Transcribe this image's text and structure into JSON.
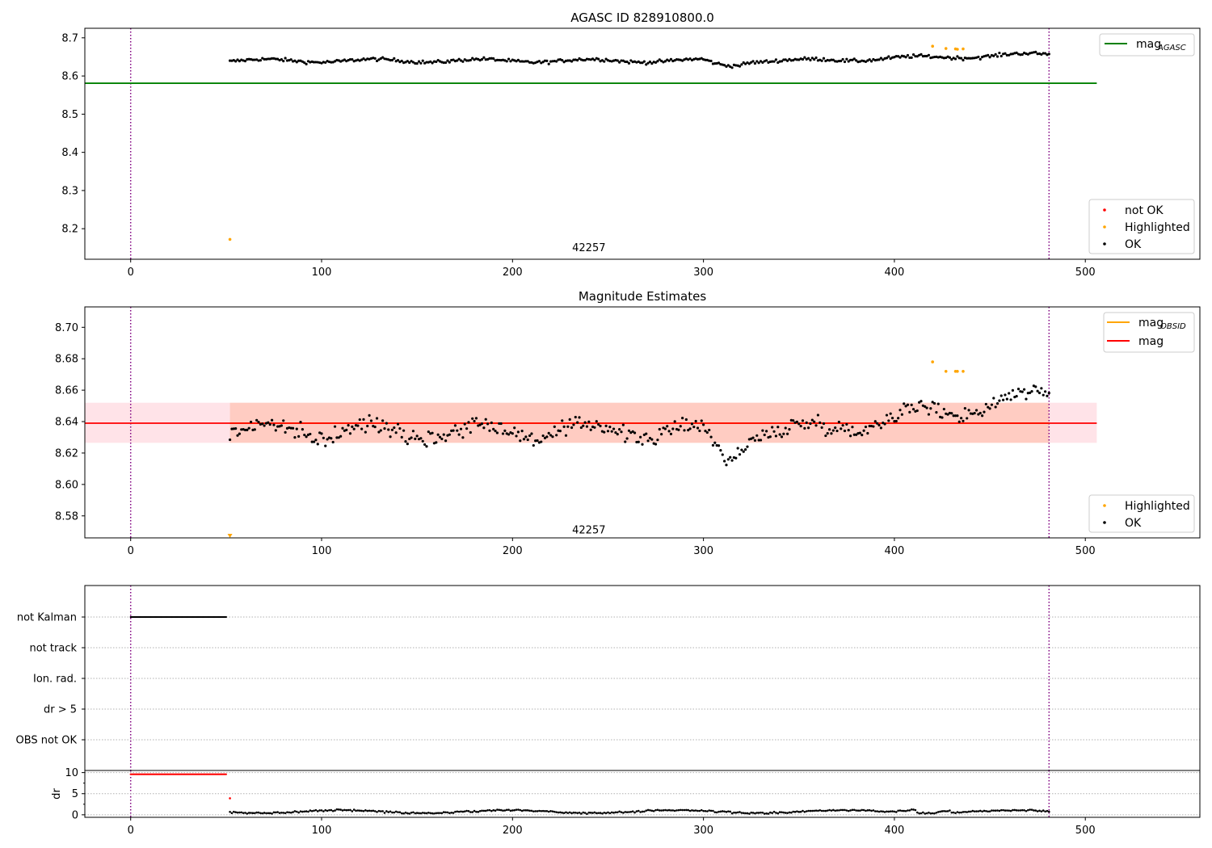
{
  "figure_title": "AGASC ID 828910800.0",
  "chart_data": [
    {
      "id": "panel1",
      "type": "scatter",
      "title": "AGASC ID 828910800.0",
      "xlim": [
        -24,
        560
      ],
      "ylim": [
        8.12,
        8.725
      ],
      "xticks": [
        0,
        100,
        200,
        300,
        400,
        500
      ],
      "xtick_labels": [
        "0",
        "100",
        "200",
        "300",
        "400",
        "500"
      ],
      "yticks": [
        8.2,
        8.3,
        8.4,
        8.5,
        8.6,
        8.7
      ],
      "ytick_labels": [
        "8.2",
        "8.3",
        "8.4",
        "8.5",
        "8.6",
        "8.7"
      ],
      "vlines": [
        0,
        481
      ],
      "hline": {
        "y": 8.581,
        "x_from": -24,
        "x_to": 506,
        "color": "#008000"
      },
      "text_annotation": {
        "x": 240,
        "y": 8.15,
        "text": "42257"
      },
      "series_ok": {
        "x_from": 52,
        "x_to": 481,
        "mean": 8.64,
        "trend_end": 8.657,
        "spread": 0.007
      },
      "highlighted_points": [
        [
          52,
          8.172
        ],
        [
          420,
          8.678
        ],
        [
          427,
          8.672
        ],
        [
          432,
          8.671
        ],
        [
          433,
          8.67
        ],
        [
          436,
          8.671
        ]
      ],
      "legend_line": {
        "label": "mag",
        "subscript": "AGASC",
        "color": "#008000"
      },
      "legend_markers": [
        {
          "label": "not OK",
          "color": "#ff0000"
        },
        {
          "label": "Highlighted",
          "color": "#ffa500"
        },
        {
          "label": "OK",
          "color": "#000000"
        }
      ]
    },
    {
      "id": "panel2",
      "type": "scatter",
      "title": "Magnitude Estimates",
      "xlim": [
        -24,
        560
      ],
      "ylim": [
        8.566,
        8.713
      ],
      "xticks": [
        0,
        100,
        200,
        300,
        400,
        500
      ],
      "xtick_labels": [
        "0",
        "100",
        "200",
        "300",
        "400",
        "500"
      ],
      "yticks": [
        8.58,
        8.6,
        8.62,
        8.64,
        8.66,
        8.68,
        8.7
      ],
      "ytick_labels": [
        "8.58",
        "8.60",
        "8.62",
        "8.64",
        "8.66",
        "8.68",
        "8.70"
      ],
      "vlines": [
        0,
        481
      ],
      "mag_line": {
        "y": 8.639,
        "x_from": -24,
        "x_to": 506,
        "color": "#ff0000"
      },
      "mag_obsid_line": {
        "y": 8.639,
        "x_from": 52,
        "x_to": 481,
        "color": "#ffa500"
      },
      "band_outer": {
        "y1": 8.6265,
        "y2": 8.652,
        "x_from": -24,
        "x_to": 506,
        "color": "#ffc0cb"
      },
      "band_inner": {
        "y1": 8.6265,
        "y2": 8.652,
        "x_from": 52,
        "x_to": 481,
        "color": "#ffa07a"
      },
      "text_annotation": {
        "x": 240,
        "y": 8.571,
        "text": "42257"
      },
      "series_ok": {
        "x_from": 52,
        "x_to": 481,
        "mean": 8.634,
        "trend_end": 8.657,
        "spread": 0.008
      },
      "highlighted_points": [
        [
          52,
          8.567
        ],
        [
          420,
          8.678
        ],
        [
          427,
          8.672
        ],
        [
          432,
          8.672
        ],
        [
          433,
          8.672
        ],
        [
          436,
          8.672
        ]
      ],
      "legend_lines": [
        {
          "label": "mag",
          "subscript": "OBSID",
          "color": "#ffa500"
        },
        {
          "label": "mag",
          "subscript": "",
          "color": "#ff0000"
        }
      ],
      "legend_markers": [
        {
          "label": "Highlighted",
          "color": "#ffa500"
        },
        {
          "label": "OK",
          "color": "#000000"
        }
      ]
    },
    {
      "id": "panel3",
      "type": "scatter",
      "title": "",
      "xlim": [
        -24,
        560
      ],
      "categories": [
        "not Kalman",
        "not track",
        "Ion. rad.",
        "dr > 5",
        "OBS not OK"
      ],
      "flags": [
        {
          "category": "not Kalman",
          "x_from": 0,
          "x_to": 50
        }
      ],
      "vlines": [
        0,
        481
      ]
    },
    {
      "id": "panel4",
      "type": "scatter",
      "ylabel": "dr",
      "xlim": [
        -24,
        560
      ],
      "ylim": [
        -0.6,
        10.5
      ],
      "xticks": [
        0,
        100,
        200,
        300,
        400,
        500
      ],
      "xtick_labels": [
        "0",
        "100",
        "200",
        "300",
        "400",
        "500"
      ],
      "yticks": [
        0,
        5,
        10
      ],
      "ytick_labels": [
        "0",
        "5",
        "10"
      ],
      "vlines": [
        0,
        481
      ],
      "not_ok_run": {
        "x_from": 0,
        "x_to": 50,
        "y": 9.6
      },
      "not_ok_points": [
        [
          52,
          3.9
        ]
      ],
      "series_ok": {
        "x_from": 52,
        "x_to": 481,
        "mean": 0.75,
        "spread": 0.35
      }
    }
  ]
}
